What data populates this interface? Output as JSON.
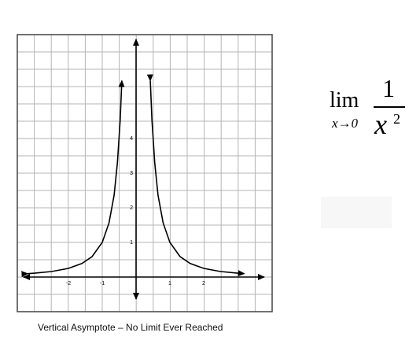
{
  "chart_data": {
    "type": "line",
    "title": "",
    "xlabel": "",
    "ylabel": "",
    "xlim": [
      -3.3,
      3.9
    ],
    "ylim": [
      -0.4,
      7.2
    ],
    "x_ticks": [
      "-2",
      "-1",
      "1",
      "2"
    ],
    "y_ticks": [
      "1",
      "2",
      "3",
      "4"
    ],
    "grid": true,
    "axis_arrows": true,
    "series": [
      {
        "branch": "left",
        "x": [
          -3.2,
          -3.0,
          -2.5,
          -2.0,
          -1.6,
          -1.3,
          -1.0,
          -0.8,
          -0.65,
          -0.55,
          -0.47,
          -0.42
        ],
        "y": [
          0.098,
          0.111,
          0.16,
          0.25,
          0.391,
          0.592,
          1.0,
          1.563,
          2.367,
          3.306,
          4.527,
          5.669
        ]
      },
      {
        "branch": "right",
        "x": [
          0.42,
          0.47,
          0.55,
          0.65,
          0.8,
          1.0,
          1.3,
          1.6,
          2.0,
          2.5,
          3.0,
          3.2
        ],
        "y": [
          5.669,
          4.527,
          3.306,
          2.367,
          1.563,
          1.0,
          0.592,
          0.391,
          0.25,
          0.16,
          0.111,
          0.098
        ]
      }
    ],
    "line_color": "#000000"
  },
  "caption": "Vertical Asymptote – No Limit Ever Reached",
  "formula": {
    "lim_word": "lim",
    "subscript": "x→0",
    "numerator": "1",
    "denominator_var": "x",
    "exponent": "2"
  }
}
